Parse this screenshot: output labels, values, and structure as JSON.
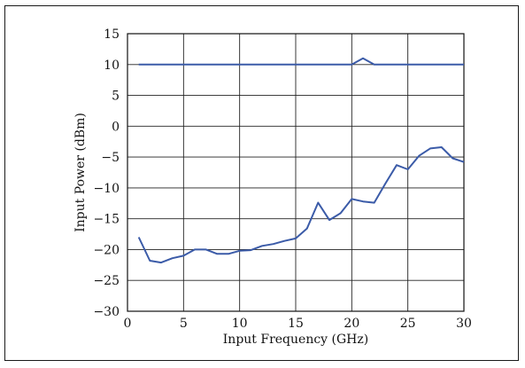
{
  "chart_data": {
    "type": "line",
    "title": "",
    "xlabel": "Input Frequency (GHz)",
    "ylabel": "Input Power (dBm)",
    "xlim": [
      0,
      30
    ],
    "ylim": [
      -30,
      15
    ],
    "x_ticks": [
      0,
      5,
      10,
      15,
      20,
      25,
      30
    ],
    "y_ticks": [
      15,
      10,
      5,
      0,
      -5,
      -10,
      -15,
      -20,
      -25,
      -30
    ],
    "x_tick_labels": [
      "0",
      "5",
      "10",
      "15",
      "20",
      "25",
      "30"
    ],
    "y_tick_labels": [
      "15",
      "10",
      "5",
      "0",
      "−5",
      "−10",
      "−15",
      "−20",
      "−25",
      "−30"
    ],
    "grid": true,
    "line_color": "#3b5ba8",
    "series": [
      {
        "x": [
          1,
          16,
          20,
          21,
          22,
          25,
          30
        ],
        "y": [
          10.0,
          10.0,
          10.0,
          11.0,
          10.0,
          10.0,
          10.0
        ]
      },
      {
        "x": [
          1,
          2,
          3,
          4,
          5,
          6,
          7,
          8,
          9,
          10,
          11,
          12,
          13,
          14,
          15,
          16,
          17,
          18,
          19,
          20,
          21,
          22,
          23,
          24,
          25,
          26,
          27,
          28,
          29,
          30
        ],
        "y": [
          -18.0,
          -21.8,
          -22.1,
          -21.4,
          -21.0,
          -20.0,
          -20.0,
          -20.7,
          -20.7,
          -20.2,
          -20.1,
          -19.4,
          -19.1,
          -18.6,
          -18.2,
          -16.6,
          -12.4,
          -15.2,
          -14.1,
          -11.8,
          -12.2,
          -12.4,
          -9.3,
          -6.3,
          -7.0,
          -4.8,
          -3.6,
          -3.4,
          -5.2,
          -5.8
        ]
      }
    ]
  }
}
